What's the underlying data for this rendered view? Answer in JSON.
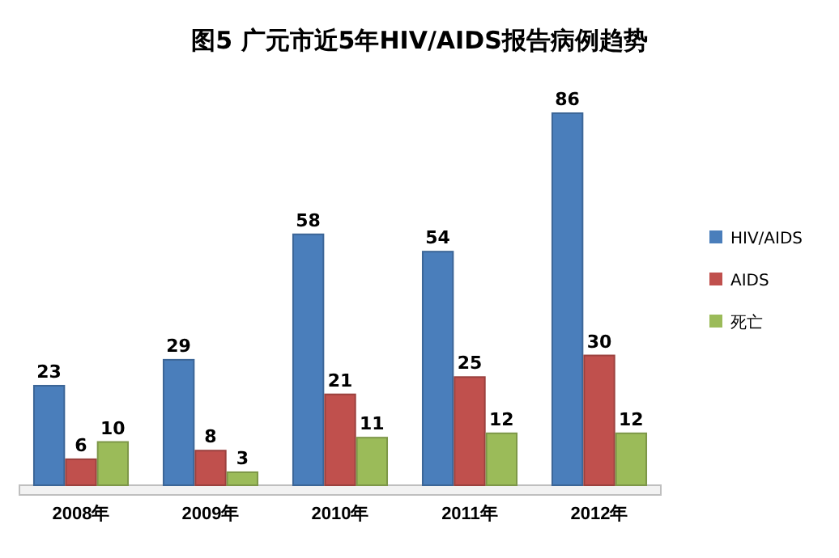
{
  "chart_data": {
    "type": "bar",
    "title": "图5  广元市近5年HIV/AIDS报告病例趋势",
    "categories": [
      "2008年",
      "2009年",
      "2010年",
      "2011年",
      "2012年"
    ],
    "series": [
      {
        "name": "HIV/AIDS",
        "color": "#4a7ebb",
        "values": [
          23,
          29,
          58,
          54,
          86
        ]
      },
      {
        "name": "AIDS",
        "color": "#c0504d",
        "values": [
          6,
          8,
          21,
          25,
          30
        ]
      },
      {
        "name": "死亡",
        "color": "#9bbb59",
        "values": [
          10,
          3,
          11,
          12,
          12
        ]
      }
    ],
    "data_labels": true,
    "legend": "right"
  }
}
